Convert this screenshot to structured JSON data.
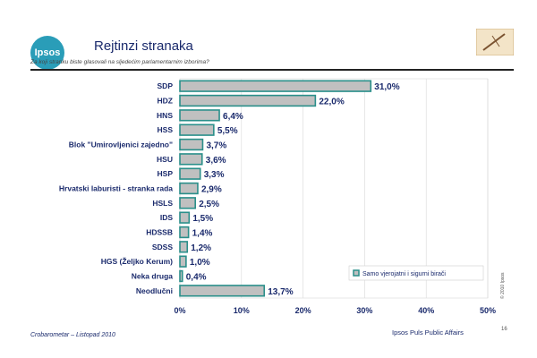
{
  "header": {
    "logo_text": "Ipsos",
    "title": "Rejtinzi stranaka",
    "subtitle": "Za koji stranku biste glasovali na sljedećim parlamentarnim izborima?"
  },
  "footer": {
    "left": "Crobarometar – Listopad  2010",
    "right": "Ipsos Puls Public Affairs",
    "page": "16",
    "copyright": "© 2010 Ipsos"
  },
  "colors": {
    "bar_fill": "#c0c0c0",
    "bar_border": "#2a8f8a",
    "accent": "#2a9db8",
    "text": "#1a2a6c"
  },
  "chart_data": {
    "type": "bar",
    "orientation": "horizontal",
    "categories": [
      "SDP",
      "HDZ",
      "HNS",
      "HSS",
      "Blok \"Umirovljenici zajedno\"",
      "HSU",
      "HSP",
      "Hrvatski laburisti - stranka rada",
      "HSLS",
      "IDS",
      "HDSSB",
      "SDSS",
      "HGS (Željko Kerum)",
      "Neka druga",
      "Neodlučni"
    ],
    "series": [
      {
        "name": "Samo vjerojatni i sigurni birači",
        "values": [
          31.0,
          22.0,
          6.4,
          5.5,
          3.7,
          3.6,
          3.3,
          2.9,
          2.5,
          1.5,
          1.4,
          1.2,
          1.0,
          0.4,
          13.7
        ],
        "labels": [
          "31,0%",
          "22,0%",
          "6,4%",
          "5,5%",
          "3,7%",
          "3,6%",
          "3,3%",
          "2,9%",
          "2,5%",
          "1,5%",
          "1,4%",
          "1,2%",
          "1,0%",
          "0,4%",
          "13,7%"
        ]
      }
    ],
    "xlim": [
      0,
      50
    ],
    "xticks": [
      "0%",
      "10%",
      "20%",
      "30%",
      "40%",
      "50%"
    ],
    "grid": true,
    "legend_position": "bottom-right"
  }
}
